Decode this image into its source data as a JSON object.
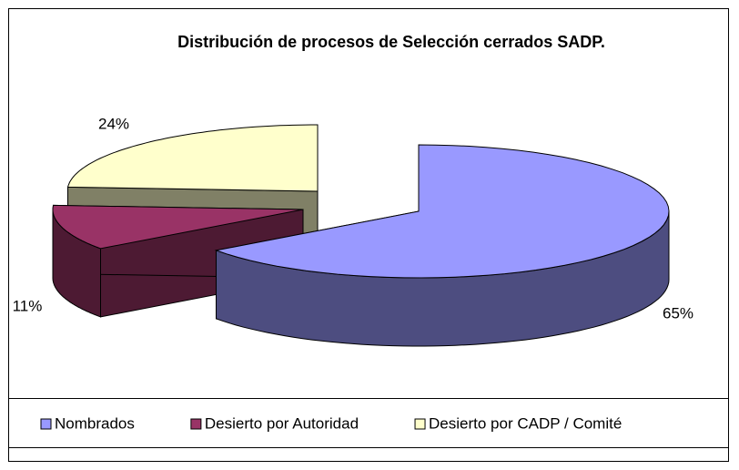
{
  "chart_data": {
    "type": "pie3d",
    "title": "Distribución de procesos de Selección cerrados SADP.",
    "categories": [
      "Nombrados",
      "Desierto por Autoridad",
      "Desierto por CADP / Comité"
    ],
    "values": [
      65,
      11,
      24
    ],
    "value_labels": [
      "65%",
      "11%",
      "24%"
    ],
    "colors": [
      "#9999ff",
      "#993366",
      "#ffffcc"
    ],
    "legend": "bottom"
  }
}
